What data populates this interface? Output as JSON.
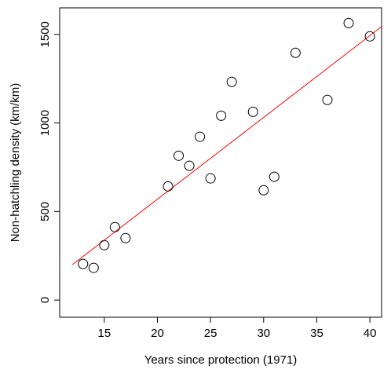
{
  "chart_data": {
    "type": "scatter",
    "x_label": "Years since protection (1971)",
    "y_label": "Non-hatchling density (km/km)",
    "series": [
      {
        "x": [
          13,
          14,
          15,
          16,
          17,
          21,
          22,
          23,
          24,
          25,
          26,
          27,
          29,
          30,
          31,
          33,
          36,
          38,
          40
        ],
        "values": [
          204,
          182,
          310,
          412,
          350,
          642,
          815,
          758,
          922,
          687,
          1041,
          1232,
          1063,
          620,
          696,
          1396,
          1130,
          1564,
          1489
        ],
        "color": "#000000"
      }
    ],
    "fit_line": {
      "x": [
        12,
        41.1
      ],
      "values": [
        200,
        1544
      ],
      "color": "#ff0000"
    },
    "xlim": [
      10.8,
      41.1
    ],
    "ylim": [
      -97,
      1650
    ],
    "xticks": [
      15,
      20,
      25,
      30,
      35,
      40
    ],
    "yticks": [
      0,
      500,
      1000,
      1500
    ]
  }
}
